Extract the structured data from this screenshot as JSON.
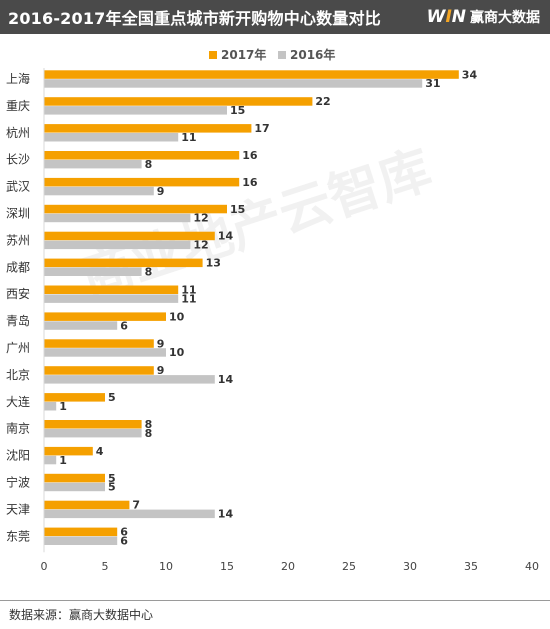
{
  "header": {
    "title": "2016-2017年全国重点城市新开购物中心数量对比",
    "logo_mark": "WIN",
    "logo_text": "赢商大数据"
  },
  "watermark": "商业地产云智库",
  "source": "数据来源：赢商大数据中心",
  "colors": {
    "series_2017": "#f5a000",
    "series_2016": "#c4c4c4",
    "header_bg": "#4a4a4a"
  },
  "chart_data": {
    "type": "bar",
    "orientation": "horizontal",
    "title": "2016-2017年全国重点城市新开购物中心数量对比",
    "categories": [
      "上海",
      "重庆",
      "杭州",
      "长沙",
      "武汉",
      "深圳",
      "苏州",
      "成都",
      "西安",
      "青岛",
      "广州",
      "北京",
      "大连",
      "南京",
      "沈阳",
      "宁波",
      "天津",
      "东莞"
    ],
    "series": [
      {
        "name": "2017年",
        "values": [
          34,
          22,
          17,
          16,
          16,
          15,
          14,
          13,
          11,
          10,
          9,
          9,
          5,
          8,
          4,
          5,
          7,
          6
        ]
      },
      {
        "name": "2016年",
        "values": [
          31,
          15,
          11,
          8,
          9,
          12,
          12,
          8,
          11,
          6,
          10,
          14,
          1,
          8,
          1,
          5,
          14,
          6
        ]
      }
    ],
    "xlim": [
      0,
      40
    ],
    "xticks": [
      "0",
      "5",
      "10",
      "15",
      "20",
      "25",
      "30",
      "35",
      "40"
    ],
    "legend_position": "top-center",
    "grid": false
  }
}
